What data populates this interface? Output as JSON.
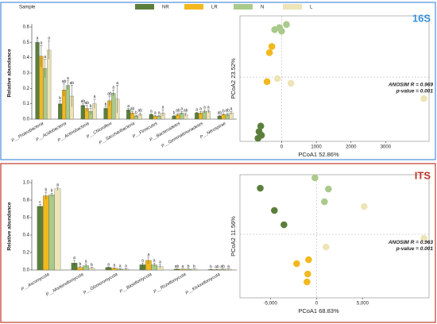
{
  "chart_data": [
    {
      "type": "bar",
      "panel_label": "16S",
      "legend_title": "Sample",
      "ylabel": "Relative abundance",
      "categories": [
        "P__Proteobacteria",
        "P__Acidobacteria",
        "P__Actinobacteria",
        "P__Chloroflexi",
        "P__Saccharibacteria",
        "P__Firmicutes",
        "P__Bacteroidetes",
        "P__Gemmatimonadetes",
        "P__Nitrospirae"
      ],
      "ylim": [
        0,
        0.6
      ],
      "yticks": [
        {
          "value": 0,
          "label": "0.0"
        },
        0.1,
        0.2,
        0.3,
        0.4,
        0.5,
        0.6
      ],
      "series": [
        {
          "name": "NR",
          "color": "#5b7f3b",
          "values": [
            0.5,
            0.1,
            0.09,
            0.07,
            0.06,
            0.03,
            0.02,
            0.04,
            0.02
          ],
          "errors": [
            0.01,
            0.02,
            0.01,
            0.01,
            0.01,
            0.005,
            0.005,
            0.005,
            0.005
          ],
          "letters": [
            "a",
            "b",
            "ab",
            "b",
            "a",
            "a",
            "b",
            "a",
            "ab"
          ]
        },
        {
          "name": "LR",
          "color": "#f2b81e",
          "values": [
            0.41,
            0.19,
            0.07,
            0.12,
            0.04,
            0.02,
            0.03,
            0.04,
            0.03
          ],
          "errors": [
            0.07,
            0.04,
            0.02,
            0.03,
            0.01,
            0.005,
            0.01,
            0.01,
            0.005
          ],
          "letters": [
            "a",
            "ab",
            "ab",
            "ab",
            "ab",
            "a",
            "ab",
            "a",
            "b"
          ]
        },
        {
          "name": "N",
          "color": "#a9ca8b",
          "values": [
            0.33,
            0.22,
            0.05,
            0.17,
            0.02,
            0.02,
            0.04,
            0.05,
            0.03
          ],
          "errors": [
            0.06,
            0.03,
            0.02,
            0.02,
            0.005,
            0.005,
            0.01,
            0.01,
            0.01
          ],
          "letters": [
            "a",
            "a",
            "b",
            "a",
            "b",
            "a",
            "a",
            "a",
            "ab"
          ]
        },
        {
          "name": "L",
          "color": "#ede4b7",
          "values": [
            0.45,
            0.15,
            0.1,
            0.13,
            0.03,
            0.04,
            0.03,
            0.05,
            0.04
          ],
          "errors": [
            0.06,
            0.07,
            0.03,
            0.09,
            0.01,
            0.02,
            0.01,
            0.01,
            0.01
          ],
          "letters": [
            "a",
            "ab",
            "a",
            "a",
            "ab",
            "a",
            "ab",
            "a",
            "a"
          ]
        }
      ]
    },
    {
      "type": "scatter",
      "xlabel": "PCoA1  52.86%",
      "ylabel": "PCoA2  23.52%",
      "xlim": [
        -1200,
        4250
      ],
      "ylim": [
        -2100,
        2000
      ],
      "xticks": [
        0,
        1000,
        2000,
        3000
      ],
      "annotations": [
        "ANOSIM R = 0.969",
        "p-value = 0.001"
      ],
      "series": [
        {
          "name": "NR",
          "color": "#5b7f3b",
          "x": [
            -600,
            -650,
            -580,
            -680
          ],
          "y": [
            -1600,
            -1780,
            -1900,
            -2000
          ]
        },
        {
          "name": "LR",
          "color": "#f2b81e",
          "x": [
            -280,
            -350,
            -420
          ],
          "y": [
            1000,
            800,
            -150
          ]
        },
        {
          "name": "N",
          "color": "#a9ca8b",
          "x": [
            -200,
            -60,
            0,
            140
          ],
          "y": [
            1550,
            1620,
            1500,
            1720
          ]
        },
        {
          "name": "L",
          "color": "#ede4b7",
          "x": [
            -120,
            270,
            4100
          ],
          "y": [
            -50,
            -200,
            -700
          ]
        }
      ]
    },
    {
      "type": "bar",
      "panel_label": "ITS",
      "ylabel": "Relative abundance",
      "categories": [
        "P__Ascomycota",
        "P__Mortierellomycota",
        "P__Glomeromycota",
        "P__Basidiomycota",
        "P__Rozellomycota",
        "P__Kickxellomycota"
      ],
      "ylim": [
        0,
        1
      ],
      "yticks": [
        {
          "value": 0,
          "label": "0.0"
        },
        0.2,
        0.4,
        0.6,
        0.8,
        {
          "value": 1,
          "label": "1.0"
        }
      ],
      "series": [
        {
          "name": "NR",
          "color": "#5b7f3b",
          "values": [
            0.73,
            0.08,
            0.03,
            0.06,
            0.01,
            0.005
          ],
          "errors": [
            0.02,
            0.03,
            0.005,
            0.02,
            0.003,
            0.002
          ],
          "letters": [
            "c",
            "a",
            "a",
            "a",
            "ab",
            "b"
          ]
        },
        {
          "name": "LR",
          "color": "#f2b81e",
          "values": [
            0.85,
            0.03,
            0.02,
            0.11,
            0.01,
            0.005
          ],
          "errors": [
            0.04,
            0.01,
            0.005,
            0.04,
            0.003,
            0.002
          ],
          "letters": [
            "b",
            "b",
            "a",
            "a",
            "a",
            "ab"
          ]
        },
        {
          "name": "N",
          "color": "#a9ca8b",
          "values": [
            0.86,
            0.05,
            0.01,
            0.06,
            0.01,
            0.01
          ],
          "errors": [
            0.02,
            0.02,
            0.005,
            0.02,
            0.003,
            0.003
          ],
          "letters": [
            "b",
            "a",
            "a",
            "a",
            "b",
            "ab"
          ]
        },
        {
          "name": "L",
          "color": "#ede4b7",
          "values": [
            0.93,
            0.02,
            0.01,
            0.04,
            0.01,
            0.01
          ],
          "errors": [
            0.02,
            0.01,
            0.005,
            0.02,
            0.003,
            0.003
          ],
          "letters": [
            "a",
            "b",
            "a",
            "a",
            "b",
            "a"
          ]
        }
      ]
    },
    {
      "type": "scatter",
      "xlabel": "PCoA1  68.83%",
      "ylabel": "PCoA2  11.56%",
      "xlim": [
        -8300,
        12200
      ],
      "ylim": [
        -4000,
        3750
      ],
      "xticks": [
        {
          "value": -5000,
          "label": "-5,000"
        },
        0,
        {
          "value": 5000,
          "label": "5,000"
        }
      ],
      "annotations": [
        "ANOSIM R = 0.963",
        "p-value = 0.001"
      ],
      "series": [
        {
          "name": "NR",
          "color": "#5b7f3b",
          "x": [
            -6100,
            -4570,
            -3530
          ],
          "y": [
            2900,
            1500,
            600
          ]
        },
        {
          "name": "LR",
          "color": "#f2b81e",
          "x": [
            -2150,
            -860,
            -950,
            -1030
          ],
          "y": [
            -1850,
            -1600,
            -2500,
            -3000
          ]
        },
        {
          "name": "N",
          "color": "#a9ca8b",
          "x": [
            -170,
            1290,
            860
          ],
          "y": [
            3550,
            2850,
            2050
          ]
        },
        {
          "name": "L",
          "color": "#ede4b7",
          "x": [
            5170,
            11640,
            1030
          ],
          "y": [
            1750,
            -250,
            -800
          ]
        }
      ]
    }
  ]
}
